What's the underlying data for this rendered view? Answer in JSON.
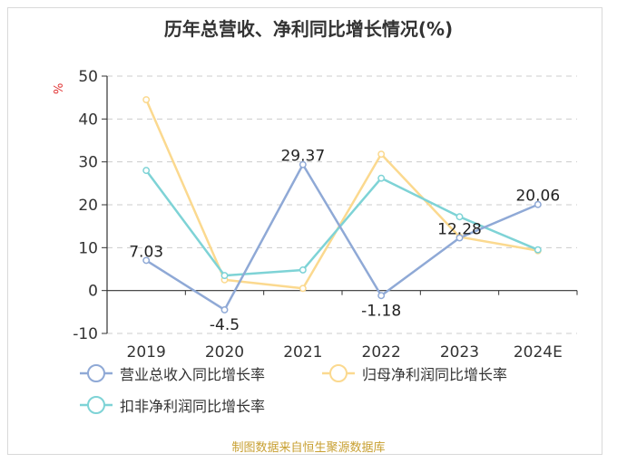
{
  "chart_data": {
    "type": "line",
    "title": "历年总营收、净利同比增长情况(%)",
    "ylabel": "%",
    "ylim": [
      -10,
      50
    ],
    "yticks": [
      "-10",
      "0",
      "10",
      "20",
      "30",
      "40",
      "50"
    ],
    "categories": [
      "2019",
      "2020",
      "2021",
      "2022",
      "2023",
      "2024E"
    ],
    "grid": true,
    "legend_position": "bottom",
    "series": [
      {
        "name": "营业总收入同比增长率",
        "color": "#8fa9d6",
        "values": [
          7.03,
          -4.5,
          29.37,
          -1.18,
          12.28,
          20.06
        ],
        "labels": [
          "7.03",
          "-4.5",
          "29.37",
          "-1.18",
          "12.28",
          "20.06"
        ]
      },
      {
        "name": "归母净利润同比增长率",
        "color": "#fbd98f",
        "values": [
          44.5,
          2.5,
          0.5,
          31.8,
          12.5,
          9.3
        ]
      },
      {
        "name": "扣非净利润同比增长率",
        "color": "#7ed3d6",
        "values": [
          28.0,
          3.5,
          4.8,
          26.2,
          17.2,
          9.5
        ]
      }
    ]
  },
  "source": "制图数据来自恒生聚源数据库"
}
